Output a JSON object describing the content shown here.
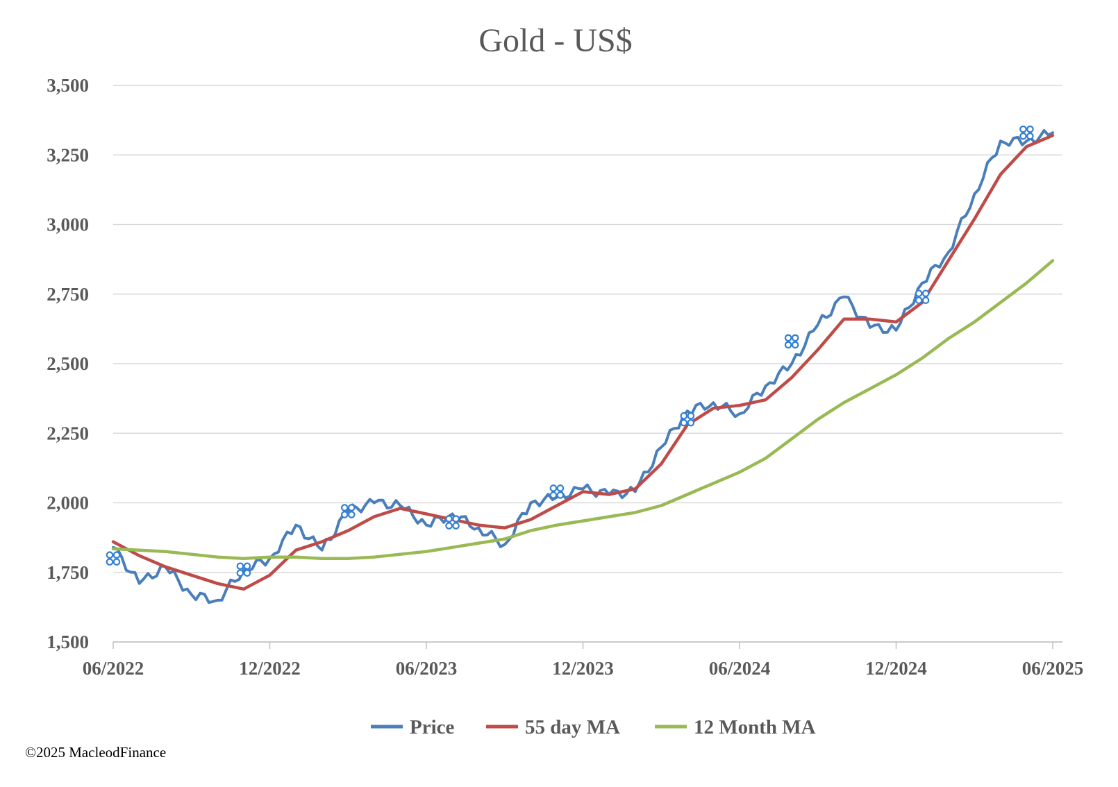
{
  "chart_data": {
    "type": "line",
    "title": "Gold - US$",
    "xlabel": "",
    "ylabel": "",
    "ylim": [
      1500,
      3500
    ],
    "y_ticks": [
      1500,
      1750,
      2000,
      2250,
      2500,
      2750,
      3000,
      3250,
      3500
    ],
    "y_tick_labels": [
      "1,500",
      "1,750",
      "2,000",
      "2,250",
      "2,500",
      "2,750",
      "3,000",
      "3,250",
      "3,500"
    ],
    "x_range": [
      "2022-06",
      "2025-06"
    ],
    "x_tick_labels": [
      "06/2022",
      "12/2022",
      "06/2023",
      "12/2023",
      "06/2024",
      "12/2024",
      "06/2025"
    ],
    "grid": "horizontal",
    "legend_position": "bottom",
    "colors": {
      "Price": "#4a7ebb",
      "55 day MA": "#be4b48",
      "12 Month MA": "#98b954",
      "marker": "#2f80d6",
      "grid": "#d9d9d9",
      "text": "#595959"
    },
    "marker_icon": "four-circle-cluster-icon",
    "x": [
      "2022-06",
      "2022-07",
      "2022-08",
      "2022-09",
      "2022-10",
      "2022-11",
      "2022-12",
      "2023-01",
      "2023-02",
      "2023-03",
      "2023-04",
      "2023-05",
      "2023-06",
      "2023-07",
      "2023-08",
      "2023-09",
      "2023-10",
      "2023-11",
      "2023-12",
      "2024-01",
      "2024-02",
      "2024-03",
      "2024-04",
      "2024-05",
      "2024-06",
      "2024-07",
      "2024-08",
      "2024-09",
      "2024-10",
      "2024-11",
      "2024-12",
      "2025-01",
      "2025-02",
      "2025-03",
      "2025-04",
      "2025-05",
      "2025-06"
    ],
    "series": [
      {
        "name": "Price",
        "values": [
          1840,
          1710,
          1770,
          1670,
          1650,
          1760,
          1800,
          1920,
          1830,
          1970,
          2000,
          1990,
          1920,
          1960,
          1910,
          1850,
          2000,
          2020,
          2050,
          2030,
          2040,
          2200,
          2330,
          2360,
          2320,
          2420,
          2500,
          2640,
          2740,
          2630,
          2620,
          2790,
          2900,
          3110,
          3300,
          3300,
          3330
        ]
      },
      {
        "name": "55 day MA",
        "values": [
          1860,
          1810,
          1770,
          1740,
          1710,
          1690,
          1740,
          1830,
          1860,
          1900,
          1950,
          1980,
          1960,
          1940,
          1920,
          1910,
          1940,
          1990,
          2040,
          2030,
          2050,
          2140,
          2280,
          2340,
          2350,
          2370,
          2450,
          2550,
          2660,
          2660,
          2650,
          2720,
          2870,
          3020,
          3180,
          3280,
          3320
        ]
      },
      {
        "name": "12 Month MA",
        "values": [
          1835,
          1830,
          1825,
          1815,
          1805,
          1800,
          1805,
          1805,
          1800,
          1800,
          1805,
          1815,
          1825,
          1840,
          1855,
          1870,
          1900,
          1920,
          1935,
          1950,
          1965,
          1990,
          2030,
          2070,
          2110,
          2160,
          2230,
          2300,
          2360,
          2410,
          2460,
          2520,
          2590,
          2650,
          2720,
          2790,
          2870
        ]
      }
    ],
    "markers": [
      {
        "x": "2022-06",
        "y": 1800
      },
      {
        "x": "2022-11",
        "y": 1760
      },
      {
        "x": "2023-03",
        "y": 1970
      },
      {
        "x": "2023-07",
        "y": 1930
      },
      {
        "x": "2023-11",
        "y": 2040
      },
      {
        "x": "2024-04",
        "y": 2300
      },
      {
        "x": "2024-08",
        "y": 2580
      },
      {
        "x": "2025-01",
        "y": 2740
      },
      {
        "x": "2025-05",
        "y": 3330
      }
    ]
  },
  "footer": {
    "copyright": "©2025 MacleodFinance"
  }
}
